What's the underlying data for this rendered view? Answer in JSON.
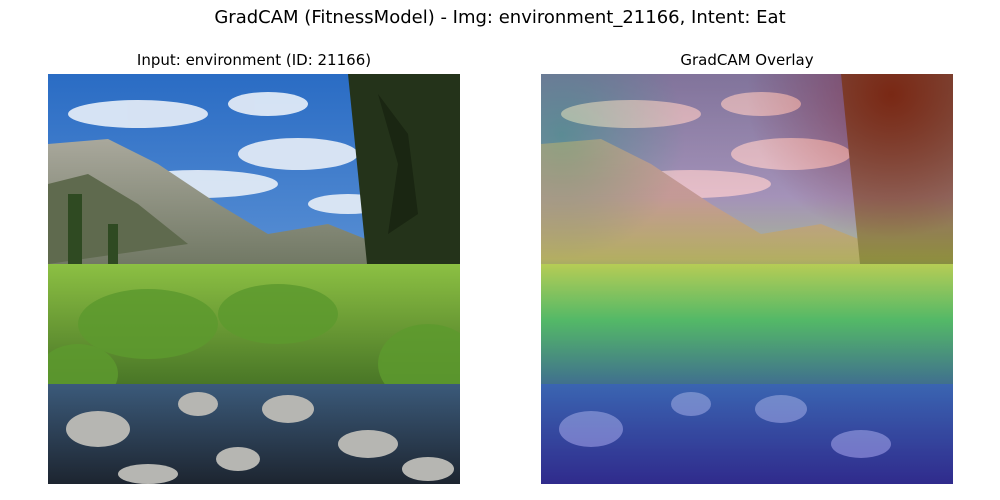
{
  "figure": {
    "title": "GradCAM (FitnessModel) - Img: environment_21166, Intent: Eat"
  },
  "panels": [
    {
      "title": "Input: environment (ID: 21166)"
    },
    {
      "title": "GradCAM Overlay"
    }
  ],
  "colors": {
    "sky": "#3a7fd0",
    "cloud": "#e6eef7",
    "mountain": "#9a9a8e",
    "forest": "#2b3b20",
    "grass": "#7fb23a",
    "water": "#2e3d52",
    "rock": "#b8b8b8",
    "heat_hot": "#d04020",
    "heat_mid": "#e6d84a",
    "heat_cool": "#3ac080",
    "heat_cold": "#3a3ae0"
  }
}
